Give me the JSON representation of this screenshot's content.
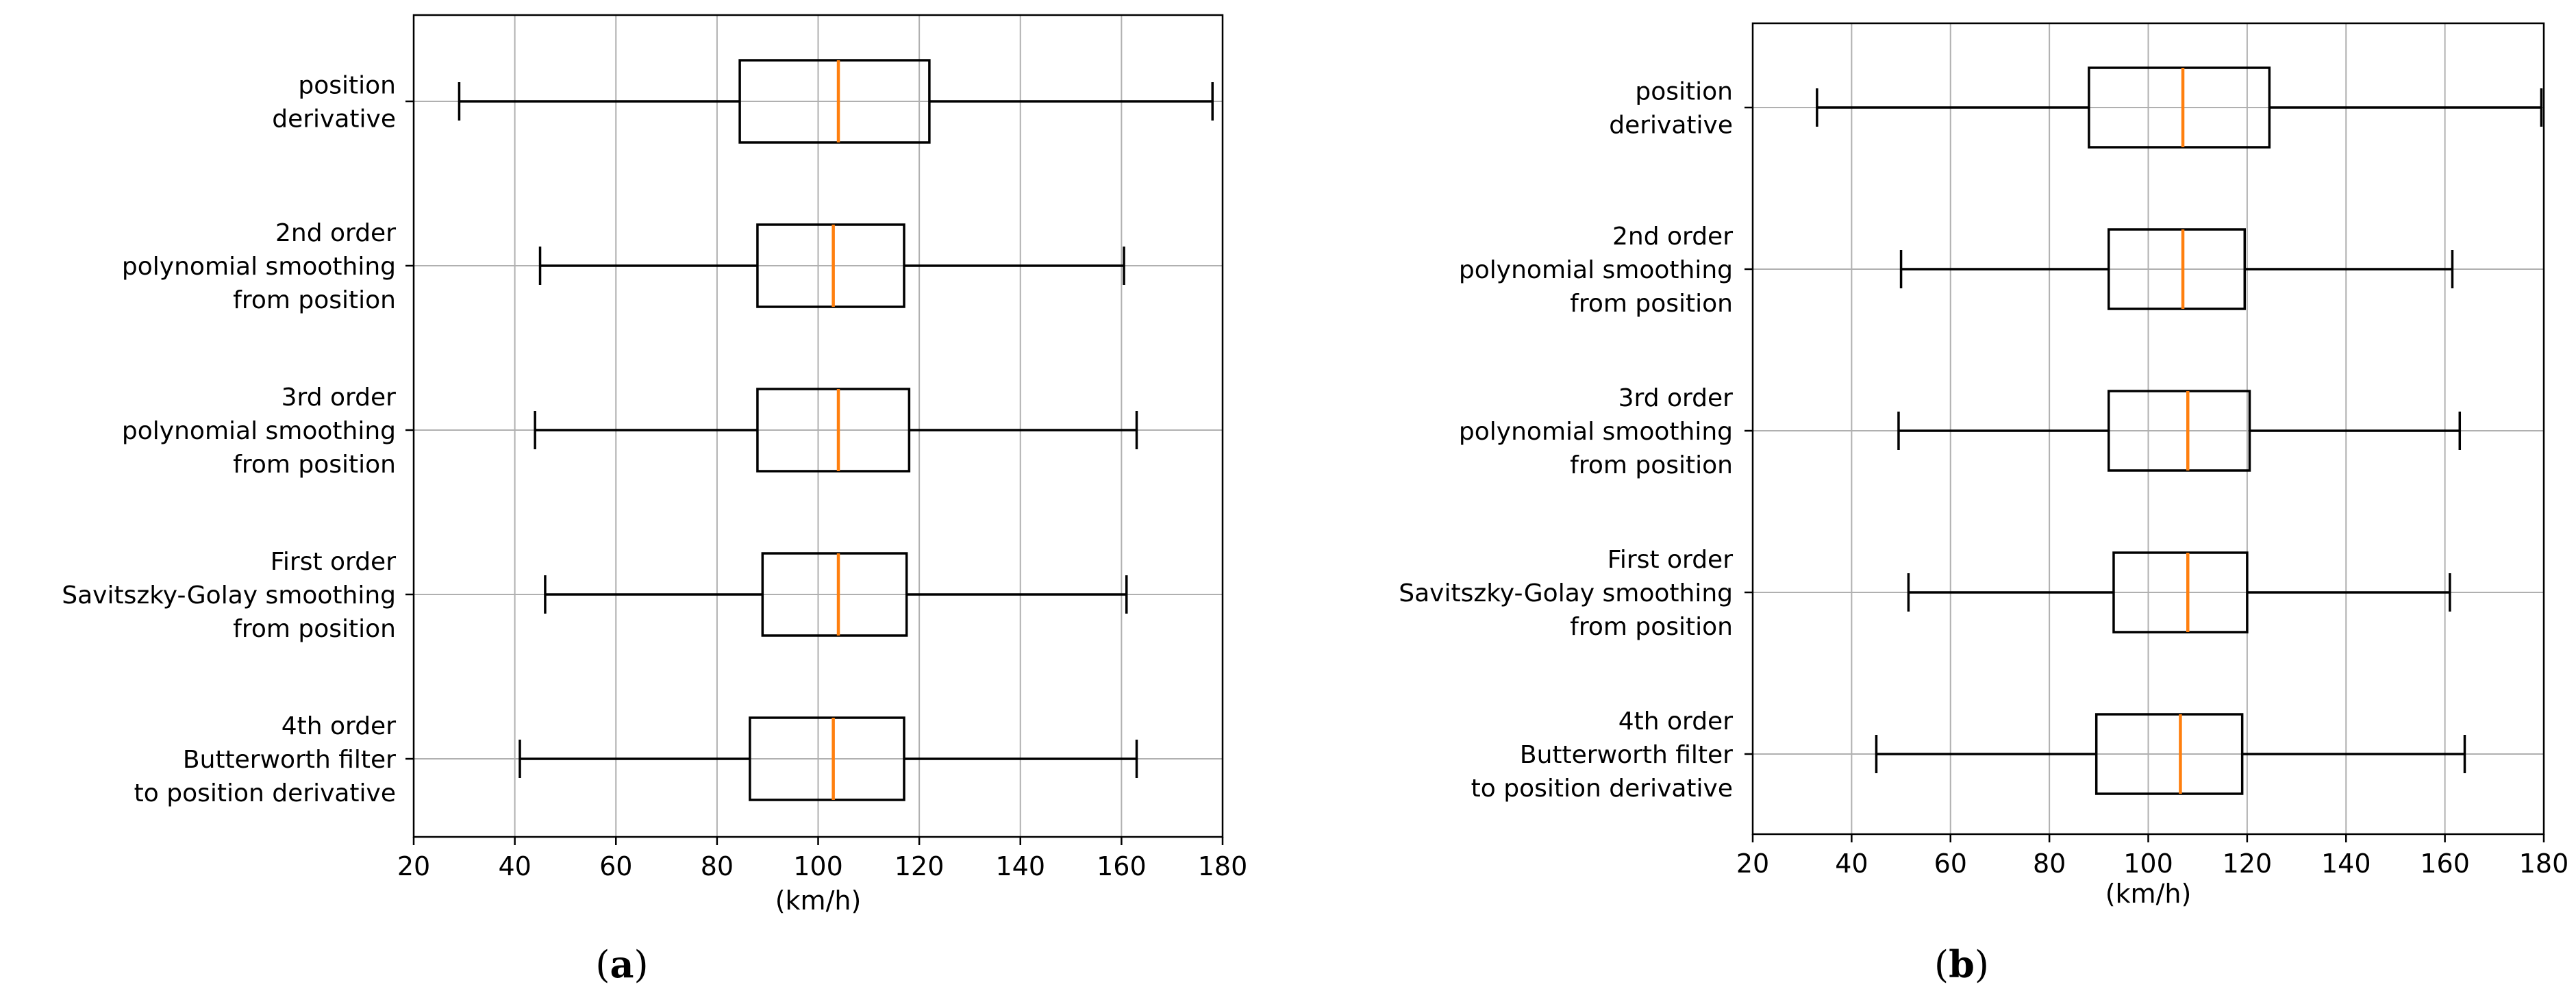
{
  "chart_data": [
    {
      "type": "box",
      "panel_label": "a",
      "xlabel": "(km/h)",
      "xlim": [
        20,
        180
      ],
      "xticks": [
        20,
        40,
        60,
        80,
        100,
        120,
        140,
        160,
        180
      ],
      "grid": true,
      "categories": [
        {
          "label": [
            "position",
            "derivative"
          ],
          "min": 29,
          "q1": 84.5,
          "median": 104,
          "q3": 122,
          "max": 178
        },
        {
          "label": [
            "2nd order",
            "polynomial smoothing",
            "from position"
          ],
          "min": 45,
          "q1": 88,
          "median": 103,
          "q3": 117,
          "max": 160.5
        },
        {
          "label": [
            "3rd order",
            "polynomial smoothing",
            "from position"
          ],
          "min": 44,
          "q1": 88,
          "median": 104,
          "q3": 118,
          "max": 163
        },
        {
          "label": [
            "First order",
            "Savitszky-Golay smoothing",
            "from position"
          ],
          "min": 46,
          "q1": 89,
          "median": 104,
          "q3": 117.5,
          "max": 161
        },
        {
          "label": [
            "4th order",
            "Butterworth filter",
            "to position derivative"
          ],
          "min": 41,
          "q1": 86.5,
          "median": 103,
          "q3": 117,
          "max": 163
        }
      ]
    },
    {
      "type": "box",
      "panel_label": "b",
      "xlabel": "(km/h)",
      "xlim": [
        20,
        180
      ],
      "xticks": [
        20,
        40,
        60,
        80,
        100,
        120,
        140,
        160,
        180
      ],
      "grid": true,
      "categories": [
        {
          "label": [
            "position",
            "derivative"
          ],
          "min": 33,
          "q1": 88,
          "median": 107,
          "q3": 124.5,
          "max": 179.5
        },
        {
          "label": [
            "2nd order",
            "polynomial smoothing",
            "from position"
          ],
          "min": 50,
          "q1": 92,
          "median": 107,
          "q3": 119.5,
          "max": 161.5
        },
        {
          "label": [
            "3rd order",
            "polynomial smoothing",
            "from position"
          ],
          "min": 49.5,
          "q1": 92,
          "median": 108,
          "q3": 120.5,
          "max": 163
        },
        {
          "label": [
            "First order",
            "Savitszky-Golay smoothing",
            "from position"
          ],
          "min": 51.5,
          "q1": 93,
          "median": 108,
          "q3": 120,
          "max": 161
        },
        {
          "label": [
            "4th order",
            "Butterworth filter",
            "to position derivative"
          ],
          "min": 45,
          "q1": 89.5,
          "median": 106.5,
          "q3": 119,
          "max": 164
        }
      ]
    }
  ],
  "colors": {
    "median": "#ff7f0e",
    "box": "#000000",
    "grid": "#b0b0b0",
    "background": "#ffffff"
  }
}
